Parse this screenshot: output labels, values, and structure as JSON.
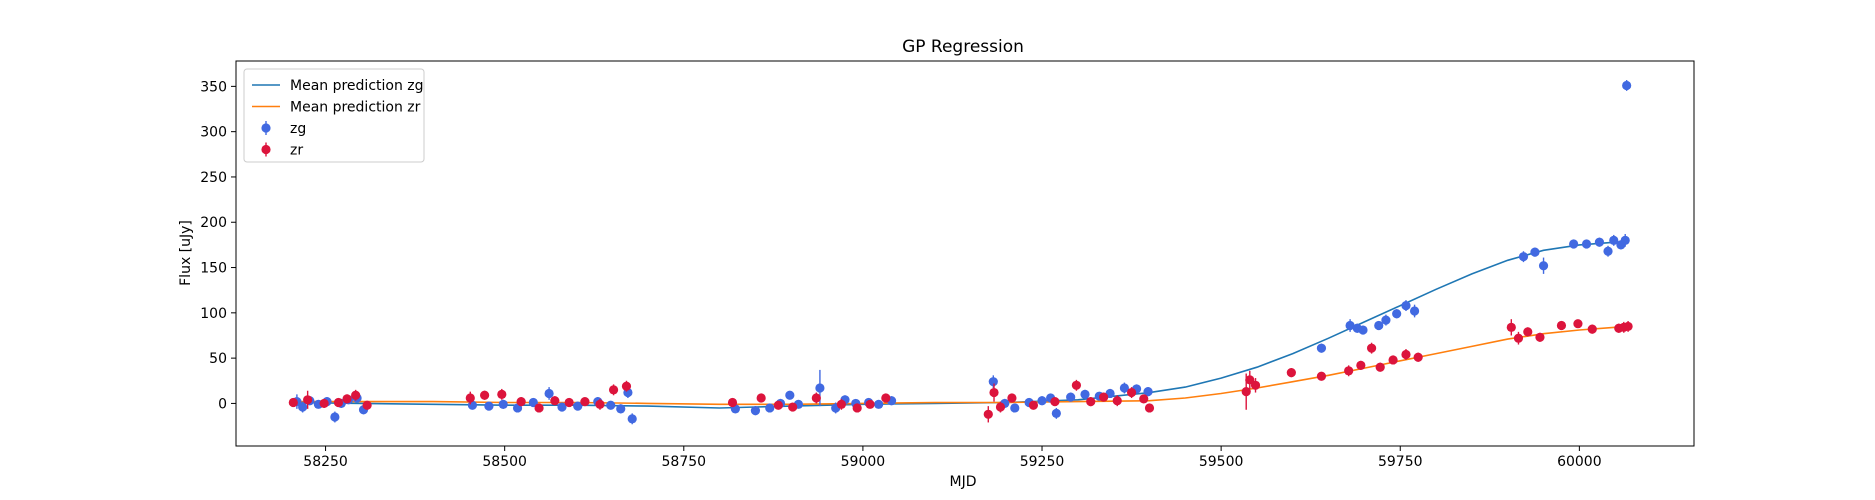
{
  "chart_data": {
    "type": "scatter",
    "title": "GP Regression",
    "xlabel": "MJD",
    "ylabel": "Flux [uJy]",
    "xlim": [
      58125,
      60160
    ],
    "ylim": [
      -47,
      378
    ],
    "xticks": [
      58250,
      58500,
      58750,
      59000,
      59250,
      59500,
      59750,
      60000
    ],
    "yticks": [
      0,
      50,
      100,
      150,
      200,
      250,
      300,
      350
    ],
    "grid": false,
    "legend_position": "top-left",
    "series": [
      {
        "name": "Mean prediction zg",
        "kind": "line",
        "color": "#1f77b4",
        "x": [
          58200,
          58300,
          58400,
          58500,
          58600,
          58700,
          58800,
          58850,
          58900,
          59000,
          59100,
          59200,
          59300,
          59400,
          59450,
          59500,
          59550,
          59600,
          59650,
          59700,
          59750,
          59800,
          59850,
          59900,
          59950,
          60000,
          60050,
          60065
        ],
        "y": [
          1,
          0,
          -1,
          -2,
          -2,
          -3,
          -5,
          -4,
          -3,
          -1,
          0,
          1,
          4,
          12,
          18,
          28,
          40,
          55,
          72,
          90,
          108,
          126,
          143,
          158,
          169,
          175,
          178,
          178
        ]
      },
      {
        "name": "Mean prediction zr",
        "kind": "line",
        "color": "#ff7f0e",
        "x": [
          58200,
          58300,
          58400,
          58500,
          58600,
          58700,
          58800,
          58900,
          59000,
          59100,
          59200,
          59300,
          59400,
          59450,
          59500,
          59550,
          59600,
          59650,
          59700,
          59750,
          59800,
          59850,
          59900,
          59950,
          60000,
          60050,
          60065
        ],
        "y": [
          2,
          2,
          2,
          1,
          1,
          0,
          -1,
          -1,
          0,
          1,
          1,
          2,
          3,
          6,
          11,
          17,
          24,
          31,
          39,
          47,
          55,
          63,
          71,
          77,
          81,
          84,
          85
        ]
      },
      {
        "name": "zg",
        "kind": "errorbar",
        "color": "#4169e1",
        "points": [
          [
            58210,
            2,
            8
          ],
          [
            58218,
            -4,
            6
          ],
          [
            58228,
            3,
            5
          ],
          [
            58240,
            -1,
            4
          ],
          [
            58252,
            2,
            5
          ],
          [
            58263,
            -15,
            6
          ],
          [
            58272,
            0,
            5
          ],
          [
            58282,
            4,
            4
          ],
          [
            58294,
            6,
            5
          ],
          [
            58303,
            -7,
            5
          ],
          [
            58455,
            -2,
            4
          ],
          [
            58478,
            -3,
            4
          ],
          [
            58498,
            -1,
            5
          ],
          [
            58518,
            -5,
            4
          ],
          [
            58540,
            1,
            5
          ],
          [
            58562,
            11,
            7
          ],
          [
            58580,
            -4,
            5
          ],
          [
            58602,
            -3,
            4
          ],
          [
            58630,
            2,
            5
          ],
          [
            58648,
            -2,
            4
          ],
          [
            58662,
            -6,
            5
          ],
          [
            58672,
            12,
            6
          ],
          [
            58678,
            -17,
            6
          ],
          [
            58822,
            -6,
            4
          ],
          [
            58850,
            -8,
            5
          ],
          [
            58870,
            -5,
            4
          ],
          [
            58885,
            0,
            5
          ],
          [
            58898,
            9,
            4
          ],
          [
            58910,
            -1,
            4
          ],
          [
            58940,
            17,
            20
          ],
          [
            58962,
            -5,
            6
          ],
          [
            58975,
            4,
            5
          ],
          [
            58990,
            0,
            4
          ],
          [
            59008,
            1,
            4
          ],
          [
            59022,
            -1,
            4
          ],
          [
            59040,
            3,
            5
          ],
          [
            59182,
            24,
            7
          ],
          [
            59198,
            0,
            5
          ],
          [
            59212,
            -5,
            4
          ],
          [
            59232,
            1,
            4
          ],
          [
            59250,
            3,
            5
          ],
          [
            59262,
            6,
            4
          ],
          [
            59270,
            -11,
            6
          ],
          [
            59290,
            7,
            5
          ],
          [
            59310,
            10,
            5
          ],
          [
            59330,
            8,
            4
          ],
          [
            59345,
            11,
            5
          ],
          [
            59365,
            17,
            6
          ],
          [
            59382,
            16,
            5
          ],
          [
            59398,
            13,
            5
          ],
          [
            59640,
            61,
            5
          ],
          [
            59680,
            86,
            7
          ],
          [
            59690,
            83,
            5
          ],
          [
            59698,
            81,
            5
          ],
          [
            59720,
            86,
            5
          ],
          [
            59730,
            92,
            6
          ],
          [
            59745,
            99,
            5
          ],
          [
            59758,
            108,
            6
          ],
          [
            59770,
            102,
            7
          ],
          [
            59922,
            162,
            6
          ],
          [
            59938,
            167,
            5
          ],
          [
            59950,
            152,
            9
          ],
          [
            59992,
            176,
            5
          ],
          [
            60010,
            176,
            4
          ],
          [
            60028,
            178,
            5
          ],
          [
            60040,
            168,
            6
          ],
          [
            60048,
            180,
            6
          ],
          [
            60058,
            175,
            5
          ],
          [
            60064,
            180,
            7
          ],
          [
            60066,
            351,
            6
          ]
        ]
      },
      {
        "name": "zr",
        "kind": "errorbar",
        "color": "#dc143c",
        "points": [
          [
            58205,
            1,
            4
          ],
          [
            58225,
            4,
            10
          ],
          [
            58248,
            0,
            5
          ],
          [
            58268,
            1,
            5
          ],
          [
            58280,
            5,
            5
          ],
          [
            58292,
            9,
            6
          ],
          [
            58308,
            -2,
            4
          ],
          [
            58452,
            6,
            7
          ],
          [
            58472,
            9,
            5
          ],
          [
            58496,
            10,
            6
          ],
          [
            58523,
            2,
            5
          ],
          [
            58548,
            -5,
            5
          ],
          [
            58570,
            3,
            5
          ],
          [
            58590,
            1,
            4
          ],
          [
            58612,
            2,
            4
          ],
          [
            58633,
            -1,
            6
          ],
          [
            58652,
            15,
            6
          ],
          [
            58670,
            19,
            6
          ],
          [
            58818,
            1,
            5
          ],
          [
            58858,
            6,
            5
          ],
          [
            58882,
            -2,
            4
          ],
          [
            58902,
            -4,
            4
          ],
          [
            58935,
            6,
            6
          ],
          [
            58970,
            -1,
            6
          ],
          [
            58992,
            -5,
            5
          ],
          [
            59010,
            -1,
            4
          ],
          [
            59032,
            6,
            5
          ],
          [
            59175,
            -12,
            9
          ],
          [
            59183,
            12,
            10
          ],
          [
            59192,
            -4,
            6
          ],
          [
            59208,
            6,
            5
          ],
          [
            59238,
            -2,
            4
          ],
          [
            59268,
            2,
            4
          ],
          [
            59298,
            20,
            6
          ],
          [
            59318,
            2,
            5
          ],
          [
            59336,
            7,
            5
          ],
          [
            59355,
            3,
            6
          ],
          [
            59375,
            12,
            6
          ],
          [
            59392,
            5,
            4
          ],
          [
            59400,
            -5,
            4
          ],
          [
            59535,
            13,
            20
          ],
          [
            59540,
            26,
            10
          ],
          [
            59548,
            20,
            8
          ],
          [
            59598,
            34,
            5
          ],
          [
            59640,
            30,
            4
          ],
          [
            59678,
            36,
            6
          ],
          [
            59695,
            42,
            5
          ],
          [
            59710,
            61,
            6
          ],
          [
            59722,
            40,
            5
          ],
          [
            59740,
            48,
            5
          ],
          [
            59758,
            54,
            6
          ],
          [
            59775,
            51,
            5
          ],
          [
            59905,
            84,
            9
          ],
          [
            59915,
            72,
            7
          ],
          [
            59928,
            79,
            5
          ],
          [
            59945,
            73,
            5
          ],
          [
            59975,
            86,
            5
          ],
          [
            59998,
            88,
            4
          ],
          [
            60018,
            82,
            5
          ],
          [
            60055,
            83,
            5
          ],
          [
            60062,
            84,
            6
          ],
          [
            60068,
            85,
            6
          ]
        ]
      }
    ]
  }
}
